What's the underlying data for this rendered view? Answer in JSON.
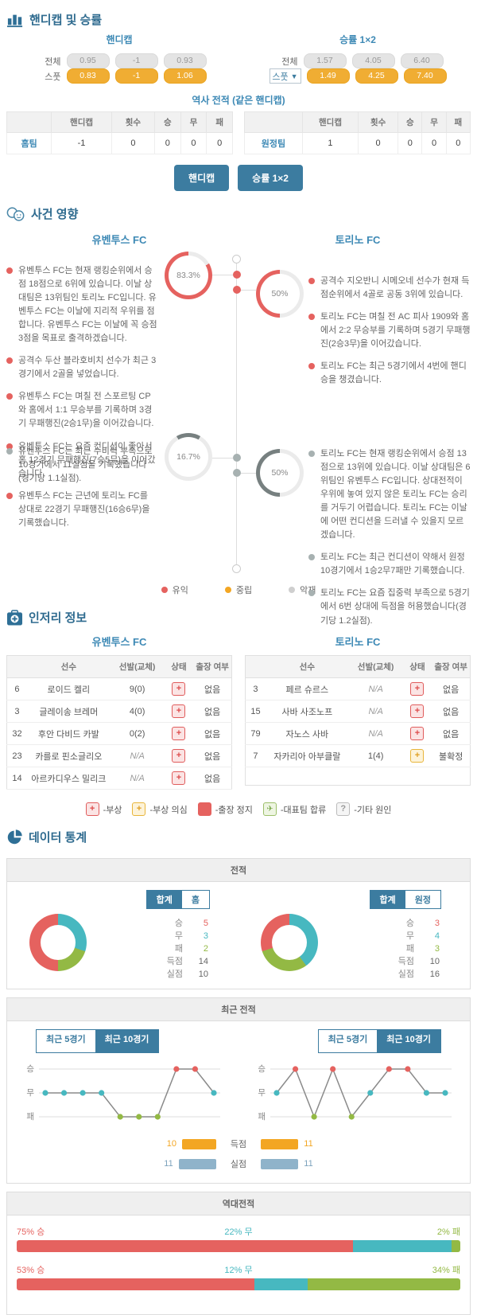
{
  "colors": {
    "red": "#e5625f",
    "teal": "#47b8c0",
    "green": "#93b944",
    "orange": "#f3a623",
    "bar_blue": "#8fb3ca",
    "accent": "#3c7ca0",
    "gauge_gray": "#778080",
    "track": "#ebebeb"
  },
  "odds_section": {
    "title": "핸디캡 및 승률",
    "handicap": {
      "title": "핸디캡",
      "rows": [
        {
          "label": "전체",
          "style": "gray",
          "dropdown": false,
          "values": [
            "0.95",
            "-1",
            "0.93"
          ]
        },
        {
          "label": "스풋",
          "style": "orange",
          "dropdown": false,
          "values": [
            "0.83",
            "-1",
            "1.06"
          ]
        }
      ]
    },
    "winrate": {
      "title": "승률 1×2",
      "rows": [
        {
          "label": "전체",
          "style": "gray",
          "dropdown": false,
          "values": [
            "1.57",
            "4.05",
            "6.40"
          ]
        },
        {
          "label": "스풋",
          "style": "orange",
          "dropdown": true,
          "values": [
            "1.49",
            "4.25",
            "7.40"
          ]
        }
      ]
    },
    "history": {
      "title": "역사 전적 (같은 핸디캡)",
      "headers": [
        "",
        "핸디캡",
        "횟수",
        "승",
        "무",
        "패"
      ],
      "tables": [
        {
          "team": "홈팀",
          "values": [
            "-1",
            "0",
            "0",
            "0",
            "0"
          ]
        },
        {
          "team": "원정팀",
          "values": [
            "1",
            "0",
            "0",
            "0",
            "0"
          ]
        }
      ]
    },
    "buttons": [
      "핸디캡",
      "승률 1×2"
    ]
  },
  "events_section": {
    "title": "사건 영향",
    "home": {
      "name": "유벤투스 FC",
      "gauges": [
        {
          "value": "83.3%",
          "pct": 83.3,
          "color": "red"
        },
        {
          "value": "16.7%",
          "pct": 16.7,
          "color": "gray"
        }
      ],
      "good_items": [
        "유벤투스 FC는 현재 랭킹순위에서 승점 18점으로 6위에 있습니다. 이날 상대팀은 13위팀인 토리노 FC입니다. 유벤투스 FC는 이날에 지리적 우위를 점합니다. 유벤투스 FC는 이날에 꼭 승점 3점을 목표로 출격하겠습니다.",
        "공격수 두산 블라호비치 선수가 최근 3경기에서 2골을 넣었습니다.",
        "유벤투스 FC는 며칠 전 스포르팅 CP와 홈에서 1:1 무승부를 기록하며 3경기 무패행진(2승1무)을 이어갔습니다.",
        "유벤투스 FC는 요즘 컨디션이 좋아서 홈 12경기 무패행진(7승5무)을 이어갔습니다.",
        "유벤투스 FC는 근년에 토리노 FC를 상대로 22경기 무패행진(16승6무)을 기록했습니다."
      ],
      "bad_items": [
        "유벤투스 FC는 최근 수비력 부족으로 10경기에서 11실점을 기록했습니다(경기당 1.1실점)."
      ]
    },
    "away": {
      "name": "토리노 FC",
      "gauges": [
        {
          "value": "50%",
          "pct": 50,
          "color": "red"
        },
        {
          "value": "50%",
          "pct": 50,
          "color": "gray"
        }
      ],
      "good_items": [
        "공격수 지오반니 시메오네 선수가 현재 득점순위에서 4골로 공동 3위에 있습니다.",
        "토리노 FC는 며칠 전 AC 피사 1909와 홈에서 2:2 무승부를 기록하며 5경기 무패행진(2승3무)을 이어갔습니다.",
        "토리노 FC는 최근 5경기에서 4번에 핸디승을 챙겼습니다."
      ],
      "bad_items": [
        "토리노 FC는 현재 랭킹순위에서 승점 13점으로 13위에 있습니다. 이날 상대팀은 6위팀인 유벤투스 FC입니다. 상대전적이 우위에 놓여 있지 않은 토리노 FC는 승리를 거두기 어렵습니다. 토리노 FC는 이날에 어떤 컨디션을 드러낼 수 있을지 모르겠습니다.",
        "토리노 FC는 최근 컨디션이 약해서 원정 10경기에서 1승2무7패만 기록했습니다.",
        "토리노 FC는 요즘 집중력 부족으로 5경기에서 6번 상대에 득점을 허용했습니다(경기당 1.2실점)."
      ]
    },
    "legend": [
      {
        "label": "유익",
        "color": "#e5625f"
      },
      {
        "label": "중립",
        "color": "#f3a623"
      },
      {
        "label": "악재",
        "color": "#cfcfcf"
      }
    ]
  },
  "injury_section": {
    "title": "인저리 정보",
    "headers": [
      "",
      "선수",
      "선발(교체)",
      "상태",
      "출장 여부"
    ],
    "home": {
      "name": "유벤투스 FC",
      "rows": [
        {
          "num": "6",
          "player": "로이드 켈리",
          "starts": "9(0)",
          "status": "injury",
          "avail": "없음"
        },
        {
          "num": "3",
          "player": "글레이송 브레머",
          "starts": "4(0)",
          "status": "injury",
          "avail": "없음"
        },
        {
          "num": "32",
          "player": "후안 다비드 카발",
          "starts": "0(2)",
          "status": "injury",
          "avail": "없음"
        },
        {
          "num": "23",
          "player": "카를로 핀소글리오",
          "starts": "N/A",
          "status": "injury",
          "avail": "없음"
        },
        {
          "num": "14",
          "player": "아르카디우스 밀리크",
          "starts": "N/A",
          "status": "injury",
          "avail": "없음"
        }
      ]
    },
    "away": {
      "name": "토리노 FC",
      "rows": [
        {
          "num": "3",
          "player": "페르 슈르스",
          "starts": "N/A",
          "status": "injury",
          "avail": "없음"
        },
        {
          "num": "15",
          "player": "사바 사조노프",
          "starts": "N/A",
          "status": "injury",
          "avail": "없음"
        },
        {
          "num": "79",
          "player": "자노스 사바",
          "starts": "N/A",
          "status": "injury",
          "avail": "없음"
        },
        {
          "num": "7",
          "player": "자카리아 아부클랄",
          "starts": "1(4)",
          "status": "doubt",
          "avail": "불확정"
        }
      ]
    },
    "legend": [
      {
        "icon": "plus-red",
        "glyph": "+",
        "label": "-부상"
      },
      {
        "icon": "plus-yellow",
        "glyph": "+",
        "label": "-부상 의심"
      },
      {
        "icon": "solid-red",
        "glyph": "",
        "label": "-출장 정지"
      },
      {
        "icon": "plane-green",
        "glyph": "✈",
        "label": "-대표팀 합류"
      },
      {
        "icon": "q-gray",
        "glyph": "?",
        "label": "-기타 원인"
      }
    ]
  },
  "stats_section": {
    "title": "데이터 통계",
    "record": {
      "header": "전적",
      "home": {
        "toggle": [
          "합계",
          "홈"
        ],
        "active": 0,
        "stats": [
          {
            "label": "승",
            "value": "5",
            "color": "red"
          },
          {
            "label": "무",
            "value": "3",
            "color": "teal"
          },
          {
            "label": "패",
            "value": "2",
            "color": "green"
          },
          {
            "label": "득점",
            "value": "14",
            "color": ""
          },
          {
            "label": "실점",
            "value": "10",
            "color": ""
          }
        ],
        "donut": [
          {
            "pct": 30,
            "color": "teal"
          },
          {
            "pct": 20,
            "color": "green"
          },
          {
            "pct": 50,
            "color": "red"
          }
        ]
      },
      "away": {
        "toggle": [
          "합계",
          "원정"
        ],
        "active": 0,
        "stats": [
          {
            "label": "승",
            "value": "3",
            "color": "red"
          },
          {
            "label": "무",
            "value": "4",
            "color": "teal"
          },
          {
            "label": "패",
            "value": "3",
            "color": "green"
          },
          {
            "label": "득점",
            "value": "10",
            "color": ""
          },
          {
            "label": "실점",
            "value": "16",
            "color": ""
          }
        ],
        "donut": [
          {
            "pct": 40,
            "color": "teal"
          },
          {
            "pct": 30,
            "color": "green"
          },
          {
            "pct": 30,
            "color": "red"
          }
        ]
      }
    },
    "recent": {
      "header": "최근 전적",
      "toggle": [
        "최근 5경기",
        "최근 10경기"
      ],
      "active": 1,
      "axis": [
        "승",
        "무",
        "패"
      ],
      "home_results": [
        "무",
        "무",
        "무",
        "무",
        "패",
        "패",
        "패",
        "승",
        "승",
        "무"
      ],
      "away_results": [
        "무",
        "승",
        "패",
        "승",
        "패",
        "무",
        "승",
        "승",
        "무",
        "무"
      ],
      "bar_labels": [
        "득점",
        "실점"
      ],
      "home_goals": {
        "scored": 10,
        "conceded": 11
      },
      "away_goals": {
        "scored": 11,
        "conceded": 11
      }
    },
    "h2h": {
      "header": "역대전적",
      "bars": [
        {
          "segments": [
            {
              "pct": 75,
              "label": "75% 승",
              "color": "red"
            },
            {
              "pct": 22,
              "label": "22% 무",
              "color": "teal"
            },
            {
              "pct": 2,
              "label": "2% 패",
              "color": "green"
            }
          ]
        },
        {
          "segments": [
            {
              "pct": 53,
              "label": "53% 승",
              "color": "red"
            },
            {
              "pct": 12,
              "label": "12% 무",
              "color": "teal"
            },
            {
              "pct": 34,
              "label": "34% 패",
              "color": "green"
            }
          ]
        }
      ]
    }
  },
  "chart_data": [
    {
      "type": "pie",
      "title": "전적 합계 - 유벤투스 FC",
      "labels": [
        "승",
        "무",
        "패"
      ],
      "values": [
        5,
        3,
        2
      ],
      "extra": {
        "득점": 14,
        "실점": 10
      },
      "legend_position": "right"
    },
    {
      "type": "pie",
      "title": "전적 합계 - 토리노 FC",
      "labels": [
        "승",
        "무",
        "패"
      ],
      "values": [
        3,
        4,
        3
      ],
      "extra": {
        "득점": 10,
        "실점": 16
      },
      "legend_position": "right"
    },
    {
      "type": "line",
      "title": "최근 10경기 - 유벤투스 FC",
      "x": [
        1,
        2,
        3,
        4,
        5,
        6,
        7,
        8,
        9,
        10
      ],
      "categories_y": [
        "승",
        "무",
        "패"
      ],
      "values": [
        "무",
        "무",
        "무",
        "무",
        "패",
        "패",
        "패",
        "승",
        "승",
        "무"
      ],
      "goals_scored": 10,
      "goals_conceded": 11
    },
    {
      "type": "line",
      "title": "최근 10경기 - 토리노 FC",
      "x": [
        1,
        2,
        3,
        4,
        5,
        6,
        7,
        8,
        9,
        10
      ],
      "categories_y": [
        "승",
        "무",
        "패"
      ],
      "values": [
        "무",
        "승",
        "패",
        "승",
        "패",
        "무",
        "승",
        "승",
        "무",
        "무"
      ],
      "goals_scored": 11,
      "goals_conceded": 11
    },
    {
      "type": "bar",
      "title": "역대전적",
      "series": [
        {
          "name": "bar1",
          "승": 75,
          "무": 22,
          "패": 2
        },
        {
          "name": "bar2",
          "승": 53,
          "무": 12,
          "패": 34
        }
      ],
      "unit": "%"
    }
  ]
}
